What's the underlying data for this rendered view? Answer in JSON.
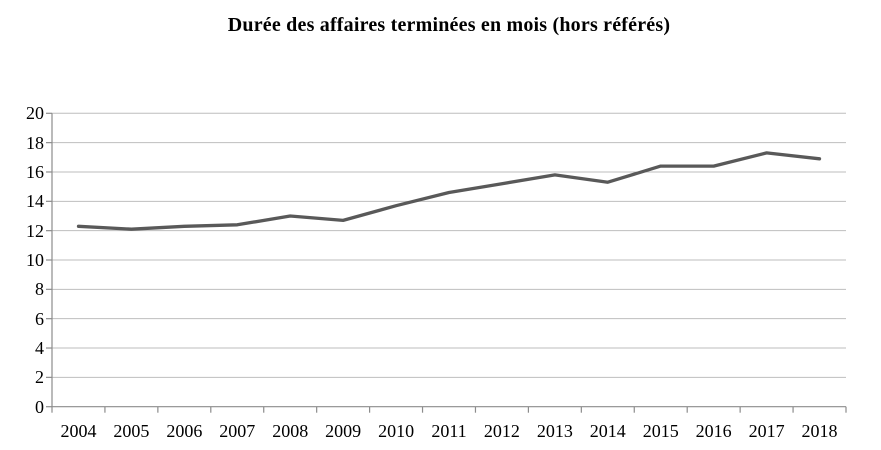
{
  "chart_data": {
    "type": "line",
    "title": "Durée des affaires terminées en mois (hors référés)",
    "categories": [
      "2004",
      "2005",
      "2006",
      "2007",
      "2008",
      "2009",
      "2010",
      "2011",
      "2012",
      "2013",
      "2014",
      "2015",
      "2016",
      "2017",
      "2018"
    ],
    "values": [
      12.3,
      12.1,
      12.3,
      12.4,
      13.0,
      12.7,
      13.7,
      14.6,
      15.2,
      15.8,
      15.3,
      16.4,
      16.4,
      17.3,
      16.9
    ],
    "xlabel": "",
    "ylabel": "",
    "ylim": [
      0,
      20
    ],
    "y_ticks": [
      0,
      2,
      4,
      6,
      8,
      10,
      12,
      14,
      16,
      18,
      20
    ],
    "grid": "horizontal",
    "legend": "none",
    "colors": {
      "line": "#595959",
      "grid": "#bebebe",
      "axis": "#8c8c8c",
      "text": "#000000",
      "background": "#ffffff"
    }
  }
}
